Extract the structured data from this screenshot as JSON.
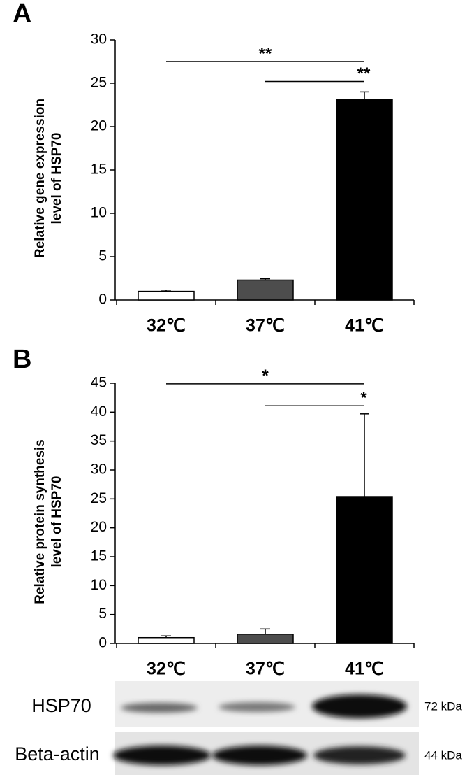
{
  "chart_data": [
    {
      "type": "bar",
      "panel_label": "A",
      "ylabel": [
        "Relative gene expression",
        "level  of HSP70"
      ],
      "categories": [
        "32℃",
        "37℃",
        "41℃"
      ],
      "values": [
        1.0,
        2.3,
        23.1
      ],
      "errors": [
        0.15,
        0.15,
        0.9
      ],
      "colors": [
        "#ffffff",
        "#4d4d4d",
        "#000000"
      ],
      "ylim": [
        0,
        30
      ],
      "yticks": [
        0,
        5,
        10,
        15,
        20,
        25,
        30
      ],
      "annotations": [
        {
          "label": "**",
          "from": 0,
          "to": 2,
          "y": 27.5
        },
        {
          "label": "**",
          "from": 1,
          "to": 2,
          "y": 25.2
        }
      ]
    },
    {
      "type": "bar",
      "panel_label": "B",
      "ylabel": [
        "Relative protein synthesis",
        "level  of HSP70"
      ],
      "categories": [
        "32℃",
        "37℃",
        "41℃"
      ],
      "values": [
        1.0,
        1.6,
        25.4
      ],
      "errors": [
        0.3,
        0.9,
        14.3
      ],
      "colors": [
        "#ffffff",
        "#4d4d4d",
        "#000000"
      ],
      "ylim": [
        0,
        45
      ],
      "yticks": [
        0,
        5,
        10,
        15,
        20,
        25,
        30,
        35,
        40,
        45
      ],
      "annotations": [
        {
          "label": "*",
          "from": 0,
          "to": 2,
          "y": 44.9
        },
        {
          "label": "*",
          "from": 1,
          "to": 2,
          "y": 41.1
        }
      ]
    }
  ],
  "blot": {
    "rows": [
      "HSP70",
      "Beta-actin"
    ],
    "sizes": [
      "72 kDa",
      "44 kDa"
    ]
  }
}
